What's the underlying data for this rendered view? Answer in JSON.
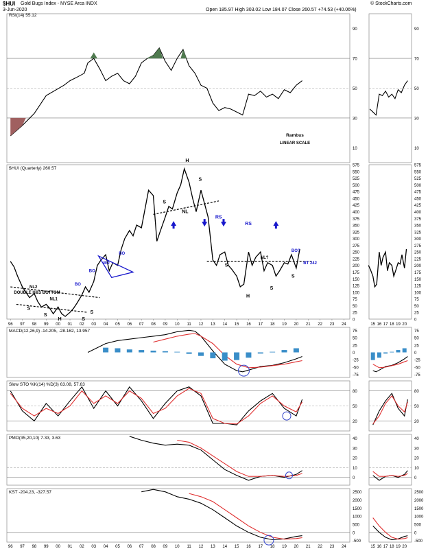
{
  "header": {
    "symbol": "$HUI",
    "name": "Gold Bugs Index - NYSE Arca INDX",
    "date": "3-Jun-2020",
    "open_label": "Open",
    "open": "185.97",
    "high_label": "High",
    "high": "303.02",
    "low_label": "Low",
    "low": "184.07",
    "close_label": "Close",
    "close": "260.57",
    "change": "+74.53 (+40.06%)",
    "brand": "© StockCharts.com"
  },
  "colors": {
    "price": "#000000",
    "signal": "#e03030",
    "hist": "#3a8ec8",
    "annot_blue": "#1818cc",
    "rsi_green": "#4f7a4f",
    "rsi_red": "#a06060",
    "circle": "#3344cc",
    "sma_value": "#3a8ec8"
  },
  "chart_data": [
    {
      "panel": "rsi",
      "type": "line",
      "legend": "RSI(14) 55.12",
      "ylim": [
        0,
        100
      ],
      "y_ticks": [
        "90",
        "70",
        "50",
        "30",
        "10"
      ],
      "reference_lines": [
        70,
        30
      ],
      "annotations": [
        "Rambus",
        "LINEAR SCALE"
      ],
      "series": [
        {
          "x": [
            1996.0,
            1997.0,
            1998.0,
            1999.0,
            2000.5,
            2001.0,
            2001.5,
            2002.2,
            2002.5,
            2003.0,
            2003.5,
            2004.0,
            2004.5,
            2005.0,
            2005.5,
            2006.0,
            2006.5,
            2007.0,
            2007.5,
            2008.0,
            2008.5,
            2009.0,
            2009.5,
            2010.0,
            2010.5,
            2011.0,
            2011.5,
            2012.0,
            2012.5,
            2013.0,
            2013.5,
            2014.0,
            2014.5,
            2015.0,
            2015.5,
            2016.0,
            2016.5,
            2017.0,
            2017.5,
            2018.0,
            2018.5,
            2019.0,
            2019.5,
            2020.0,
            2020.5
          ],
          "values": [
            18,
            25,
            33,
            45,
            52,
            55,
            57,
            60,
            67,
            70,
            63,
            55,
            58,
            60,
            55,
            53,
            58,
            67,
            70,
            72,
            77,
            68,
            62,
            70,
            76,
            65,
            60,
            52,
            50,
            40,
            35,
            37,
            36,
            34,
            32,
            46,
            45,
            48,
            44,
            46,
            43,
            49,
            47,
            52,
            55
          ]
        }
      ]
    },
    {
      "panel": "price",
      "type": "line",
      "legend": "$HUI (Quarterly) 260.57",
      "ylim": [
        0,
        575
      ],
      "y_ticks": [
        "575",
        "550",
        "525",
        "500",
        "475",
        "450",
        "425",
        "400",
        "375",
        "350",
        "325",
        "300",
        "275",
        "250",
        "225",
        "200",
        "175",
        "150",
        "125",
        "100",
        "75",
        "50",
        "25",
        "0"
      ],
      "x_ticks": [
        "96",
        "97",
        "98",
        "99",
        "00",
        "01",
        "02",
        "03",
        "04",
        "05",
        "06",
        "07",
        "08",
        "09",
        "10",
        "11",
        "12",
        "13",
        "14",
        "15",
        "16",
        "17",
        "18",
        "19",
        "20",
        "21",
        "22",
        "23",
        "24"
      ],
      "annotations": [
        "DOUBLE H&S BOTTOM",
        "NL2",
        "NL1",
        "S",
        "S",
        "H",
        "S",
        "S",
        "BO",
        "BO",
        "BO",
        "BO",
        "H",
        "S",
        "S",
        "NL",
        "RS",
        "RS",
        "NL?",
        "S",
        "H",
        "S",
        "S",
        "BO?",
        "BT 242"
      ],
      "series": [
        {
          "x": [
            1996.0,
            1996.3,
            1996.6,
            1997.0,
            1997.3,
            1997.6,
            1998.0,
            1998.3,
            1998.6,
            1999.0,
            1999.3,
            1999.6,
            2000.0,
            2000.3,
            2000.6,
            2001.0,
            2001.3,
            2001.6,
            2002.0,
            2002.3,
            2002.6,
            2003.0,
            2003.3,
            2003.6,
            2004.0,
            2004.3,
            2004.6,
            2005.0,
            2005.3,
            2005.6,
            2006.0,
            2006.3,
            2006.6,
            2007.0,
            2007.3,
            2007.6,
            2008.0,
            2008.3,
            2008.6,
            2009.0,
            2009.3,
            2009.6,
            2010.0,
            2010.3,
            2010.6,
            2011.0,
            2011.3,
            2011.6,
            2012.0,
            2012.3,
            2012.6,
            2013.0,
            2013.3,
            2013.6,
            2014.0,
            2014.3,
            2014.6,
            2015.0,
            2015.3,
            2015.6,
            2016.0,
            2016.3,
            2016.6,
            2017.0,
            2017.3,
            2017.6,
            2018.0,
            2018.3,
            2018.6,
            2019.0,
            2019.3,
            2019.6,
            2020.0,
            2020.3
          ],
          "values": [
            215,
            195,
            160,
            120,
            100,
            80,
            95,
            65,
            45,
            55,
            40,
            20,
            45,
            20,
            10,
            25,
            40,
            60,
            90,
            120,
            100,
            140,
            200,
            220,
            240,
            180,
            210,
            200,
            260,
            300,
            330,
            310,
            350,
            340,
            410,
            480,
            460,
            290,
            330,
            380,
            420,
            410,
            470,
            500,
            560,
            510,
            450,
            400,
            480,
            430,
            380,
            220,
            200,
            240,
            250,
            200,
            185,
            160,
            120,
            130,
            250,
            200,
            230,
            250,
            180,
            210,
            200,
            160,
            180,
            210,
            205,
            240,
            190,
            261
          ]
        }
      ]
    },
    {
      "panel": "macd",
      "type": "line",
      "legend": "MACD(12,26,9) -14.205, -28.162, 13.957",
      "ylim": [
        -85,
        85
      ],
      "y_ticks": [
        "75",
        "50",
        "25",
        "0",
        "-25",
        "-50",
        "-75"
      ],
      "series": [
        {
          "name": "MACD",
          "x": [
            2002.5,
            2004.0,
            2005.0,
            2006.0,
            2007.0,
            2008.0,
            2009.0,
            2010.0,
            2011.0,
            2011.5,
            2012.0,
            2013.0,
            2014.0,
            2015.0,
            2015.5,
            2016.0,
            2017.0,
            2018.0,
            2019.0,
            2020.0,
            2020.5
          ],
          "values": [
            0,
            30,
            40,
            45,
            50,
            55,
            60,
            70,
            75,
            72,
            55,
            5,
            -40,
            -62,
            -66,
            -60,
            -48,
            -44,
            -35,
            -22,
            -14
          ]
        },
        {
          "name": "Signal",
          "x": [
            2008.0,
            2009.0,
            2010.0,
            2011.0,
            2011.5,
            2012.0,
            2013.0,
            2014.0,
            2015.0,
            2016.0,
            2017.0,
            2018.0,
            2019.0,
            2020.0,
            2020.5
          ],
          "values": [
            35,
            45,
            55,
            62,
            64,
            55,
            30,
            -10,
            -40,
            -52,
            -50,
            -45,
            -40,
            -32,
            -28
          ]
        },
        {
          "name": "Histogram",
          "x": [
            2004.0,
            2005.0,
            2006.0,
            2007.0,
            2008.0,
            2009.0,
            2010.0,
            2011.0,
            2012.0,
            2013.0,
            2014.0,
            2015.0,
            2016.0,
            2017.0,
            2018.0,
            2019.0,
            2020.0
          ],
          "values": [
            16,
            14,
            10,
            8,
            6,
            4,
            2,
            -5,
            -12,
            -20,
            -28,
            -26,
            -18,
            -4,
            2,
            8,
            14
          ]
        }
      ]
    },
    {
      "panel": "slow_sto",
      "type": "line",
      "legend": "Slow STO %K(14) %D(3) 63.08, 57.63",
      "ylim": [
        0,
        100
      ],
      "y_ticks": [
        "80",
        "50",
        "20"
      ],
      "reference_lines": [
        80,
        20
      ],
      "series": [
        {
          "name": "%K",
          "x": [
            1996.0,
            1997.0,
            1998.0,
            1999.0,
            2000.0,
            2001.0,
            2002.0,
            2003.0,
            2004.0,
            2005.0,
            2006.0,
            2007.0,
            2008.0,
            2009.0,
            2010.0,
            2011.0,
            2012.0,
            2013.0,
            2014.0,
            2015.0,
            2016.0,
            2017.0,
            2018.0,
            2019.0,
            2020.0,
            2020.5
          ],
          "values": [
            80,
            40,
            20,
            55,
            30,
            60,
            88,
            45,
            80,
            50,
            88,
            60,
            25,
            55,
            80,
            88,
            70,
            15,
            15,
            12,
            40,
            60,
            75,
            45,
            30,
            63
          ]
        },
        {
          "name": "%D",
          "x": [
            1996.0,
            1997.0,
            1998.0,
            1999.0,
            2000.0,
            2001.0,
            2002.0,
            2003.0,
            2004.0,
            2005.0,
            2006.0,
            2007.0,
            2008.0,
            2009.0,
            2010.0,
            2011.0,
            2012.0,
            2013.0,
            2014.0,
            2015.0,
            2016.0,
            2017.0,
            2018.0,
            2019.0,
            2020.0,
            2020.5
          ],
          "values": [
            75,
            45,
            30,
            45,
            35,
            50,
            80,
            55,
            70,
            55,
            80,
            65,
            35,
            45,
            70,
            85,
            75,
            25,
            15,
            14,
            30,
            55,
            70,
            50,
            38,
            58
          ]
        }
      ]
    },
    {
      "panel": "pmo",
      "type": "line",
      "legend": "PMO(35,20,10) 7.33, 3.63",
      "ylim": [
        -8,
        44
      ],
      "y_ticks": [
        "40",
        "30",
        "20",
        "10",
        "0"
      ],
      "reference_lines": [
        0
      ],
      "series": [
        {
          "name": "PMO",
          "x": [
            2006.0,
            2007.0,
            2008.0,
            2009.0,
            2010.0,
            2011.0,
            2012.0,
            2013.0,
            2014.0,
            2015.0,
            2016.0,
            2017.0,
            2018.0,
            2019.0,
            2020.0,
            2020.5
          ],
          "values": [
            42,
            38,
            35,
            33,
            34,
            33,
            28,
            18,
            8,
            2,
            -3,
            1,
            2,
            0,
            3,
            7
          ]
        },
        {
          "name": "Signal",
          "x": [
            2010.0,
            2011.0,
            2012.0,
            2013.0,
            2014.0,
            2015.0,
            2016.0,
            2017.0,
            2018.0,
            2019.0,
            2020.0,
            2020.5
          ],
          "values": [
            38,
            36,
            30,
            22,
            14,
            6,
            1,
            1,
            2,
            1,
            2,
            4
          ]
        }
      ]
    },
    {
      "panel": "kst",
      "type": "line",
      "legend": "KST -204.23, -327.57",
      "ylim": [
        -600,
        2700
      ],
      "y_ticks": [
        "2500",
        "2000",
        "1500",
        "1000",
        "500",
        "0",
        "-500"
      ],
      "reference_lines": [
        0
      ],
      "series": [
        {
          "name": "KST",
          "x": [
            2007.0,
            2008.0,
            2009.0,
            2010.0,
            2011.0,
            2012.0,
            2013.0,
            2014.0,
            2015.0,
            2016.0,
            2017.0,
            2018.0,
            2019.0,
            2020.0,
            2020.5
          ],
          "values": [
            2500,
            2650,
            2500,
            2200,
            2050,
            1800,
            1400,
            900,
            400,
            0,
            -300,
            -450,
            -400,
            -250,
            -204
          ]
        },
        {
          "name": "Signal",
          "x": [
            2011.0,
            2012.0,
            2013.0,
            2014.0,
            2015.0,
            2016.0,
            2017.0,
            2018.0,
            2019.0,
            2020.0,
            2020.5
          ],
          "values": [
            2400,
            2200,
            1900,
            1400,
            900,
            400,
            0,
            -300,
            -420,
            -380,
            -327
          ]
        }
      ]
    }
  ]
}
